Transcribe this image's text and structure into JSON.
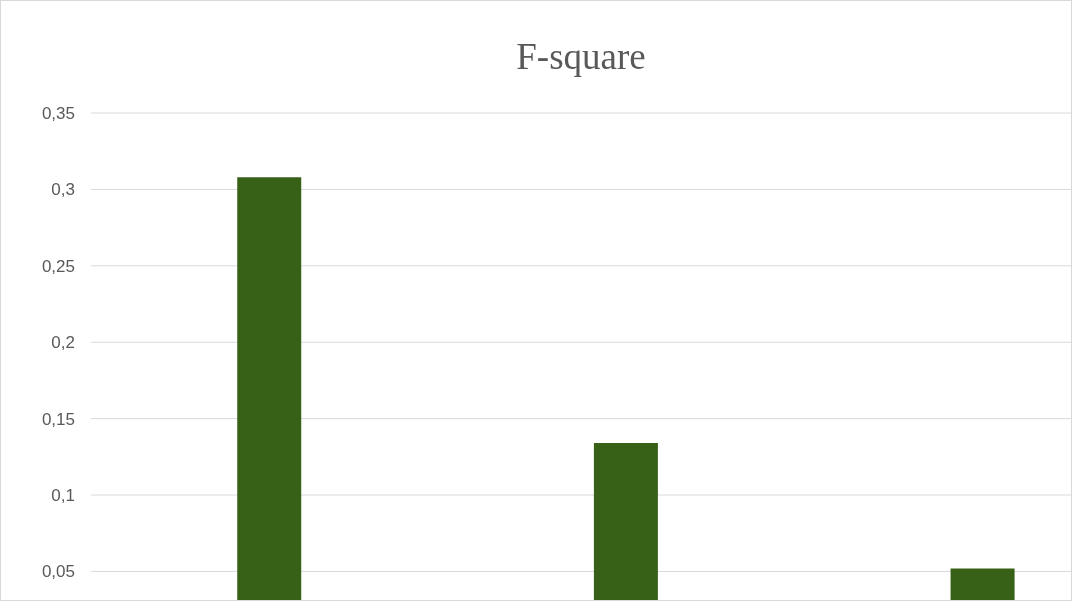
{
  "chart_data": {
    "type": "bar",
    "title": "F-square",
    "categories": [
      null,
      null,
      null
    ],
    "values": [
      0.308,
      0.134,
      0.052
    ],
    "color": "#376117",
    "ylim": [
      0.03,
      0.35
    ],
    "yticks": [
      {
        "value": 0.05,
        "label": "0,05"
      },
      {
        "value": 0.1,
        "label": "0,1"
      },
      {
        "value": 0.15,
        "label": "0,15"
      },
      {
        "value": 0.2,
        "label": "0,2"
      },
      {
        "value": 0.25,
        "label": "0,25"
      },
      {
        "value": 0.3,
        "label": "0,3"
      },
      {
        "value": 0.35,
        "label": "0,35"
      }
    ],
    "grid": "y"
  }
}
